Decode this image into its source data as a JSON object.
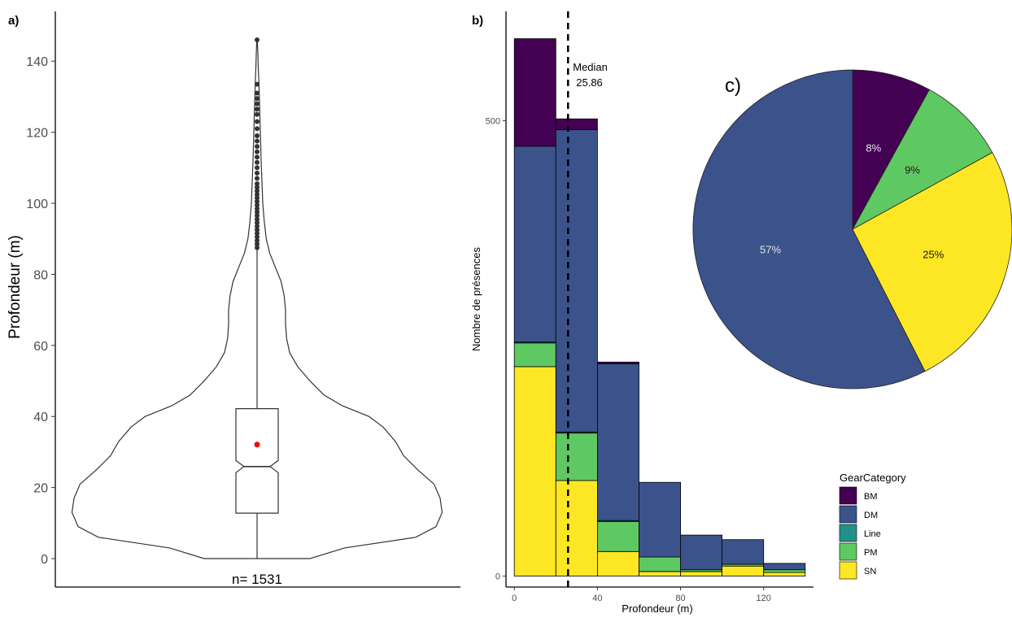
{
  "panels": {
    "a_label": "a)",
    "b_label": "b)",
    "c_label": "c)"
  },
  "chart_data": [
    {
      "panel": "a",
      "type": "violin",
      "ylabel": "Profondeur (m)",
      "ylim": [
        -8,
        154
      ],
      "yticks": [
        0,
        20,
        40,
        60,
        80,
        100,
        120,
        140
      ],
      "n_label": "n= 1531",
      "box": {
        "q1": 12.8,
        "median": 25.9,
        "q3": 42.2,
        "notch_low": 24.2,
        "notch_high": 27.6,
        "whisker_low": 0,
        "whisker_high": 87
      },
      "mean": 32.1,
      "mean_color": "#ff0000",
      "outliers": [
        87.5,
        88.5,
        89.5,
        90.5,
        91.5,
        92.5,
        93.5,
        94.5,
        95.5,
        96.5,
        97.5,
        98.5,
        99.5,
        100.5,
        101.5,
        102.5,
        103.5,
        104.5,
        105.5,
        107,
        108.5,
        110,
        111.5,
        113,
        114.5,
        116,
        117.5,
        119,
        121,
        123,
        125,
        126.5,
        128,
        129.5,
        131,
        133.5,
        146
      ],
      "density_profile": [
        [
          0,
          0.26
        ],
        [
          3,
          0.43
        ],
        [
          6,
          0.78
        ],
        [
          9,
          0.88
        ],
        [
          13,
          0.91
        ],
        [
          17,
          0.9
        ],
        [
          21,
          0.87
        ],
        [
          25,
          0.79
        ],
        [
          29,
          0.72
        ],
        [
          33,
          0.68
        ],
        [
          37,
          0.62
        ],
        [
          40,
          0.55
        ],
        [
          43,
          0.42
        ],
        [
          46,
          0.33
        ],
        [
          50,
          0.26
        ],
        [
          54,
          0.2
        ],
        [
          58,
          0.16
        ],
        [
          62,
          0.145
        ],
        [
          66,
          0.14
        ],
        [
          70,
          0.14
        ],
        [
          74,
          0.133
        ],
        [
          78,
          0.118
        ],
        [
          82,
          0.09
        ],
        [
          86,
          0.062
        ],
        [
          90,
          0.045
        ],
        [
          95,
          0.035
        ],
        [
          100,
          0.028
        ],
        [
          106,
          0.024
        ],
        [
          112,
          0.02
        ],
        [
          118,
          0.017
        ],
        [
          124,
          0.014
        ],
        [
          130,
          0.011
        ],
        [
          134,
          0.009
        ],
        [
          138,
          0.006
        ],
        [
          142,
          0.004
        ],
        [
          145,
          0.002
        ],
        [
          146.5,
          0
        ]
      ]
    },
    {
      "panel": "b",
      "type": "bar",
      "stacked": true,
      "xlabel": "Profondeur (m)",
      "ylabel": "Nombre de présences",
      "xlim": [
        -4,
        144
      ],
      "ylim": [
        -12,
        620
      ],
      "xticks": [
        0,
        40,
        80,
        120
      ],
      "yticks": [
        0,
        500
      ],
      "bins": [
        [
          0,
          20
        ],
        [
          20,
          40
        ],
        [
          40,
          60
        ],
        [
          60,
          80
        ],
        [
          80,
          100
        ],
        [
          100,
          120
        ],
        [
          120,
          140
        ]
      ],
      "series": [
        {
          "name": "SN",
          "color": "#fde725",
          "values": [
            230,
            105,
            27,
            5,
            5,
            11,
            4
          ]
        },
        {
          "name": "PM",
          "color": "#5ec962",
          "values": [
            26,
            52,
            33,
            16,
            2,
            2,
            3
          ]
        },
        {
          "name": "Line",
          "color": "#21918c",
          "values": [
            1,
            1,
            1,
            0,
            0,
            0,
            0
          ]
        },
        {
          "name": "DM",
          "color": "#3b528b",
          "values": [
            215,
            332,
            172,
            82,
            38,
            27,
            7
          ]
        },
        {
          "name": "BM",
          "color": "#440154",
          "values": [
            118,
            12,
            2,
            0,
            0,
            0,
            0
          ]
        }
      ],
      "median_line": {
        "value": 25.86,
        "label": "Median",
        "value_label": "25.86"
      },
      "legend": {
        "title": "GearCategory",
        "placement": "bottom-right",
        "entries": [
          "BM",
          "DM",
          "Line",
          "PM",
          "SN"
        ]
      }
    },
    {
      "panel": "c",
      "type": "pie",
      "slices": [
        {
          "name": "BM",
          "percent": 8,
          "label": "8%",
          "color": "#440154",
          "label_color": "#e6e6e6"
        },
        {
          "name": "PM",
          "percent": 9,
          "label": "9%",
          "color": "#5ec962",
          "label_color": "#1a1a1a"
        },
        {
          "name": "SN",
          "percent": 25.5,
          "label": "25%",
          "color": "#fde725",
          "label_color": "#1a1a1a"
        },
        {
          "name": "DM",
          "percent": 57.5,
          "label": "57%",
          "color": "#3b528b",
          "label_color": "#e6e6e6"
        }
      ]
    }
  ]
}
